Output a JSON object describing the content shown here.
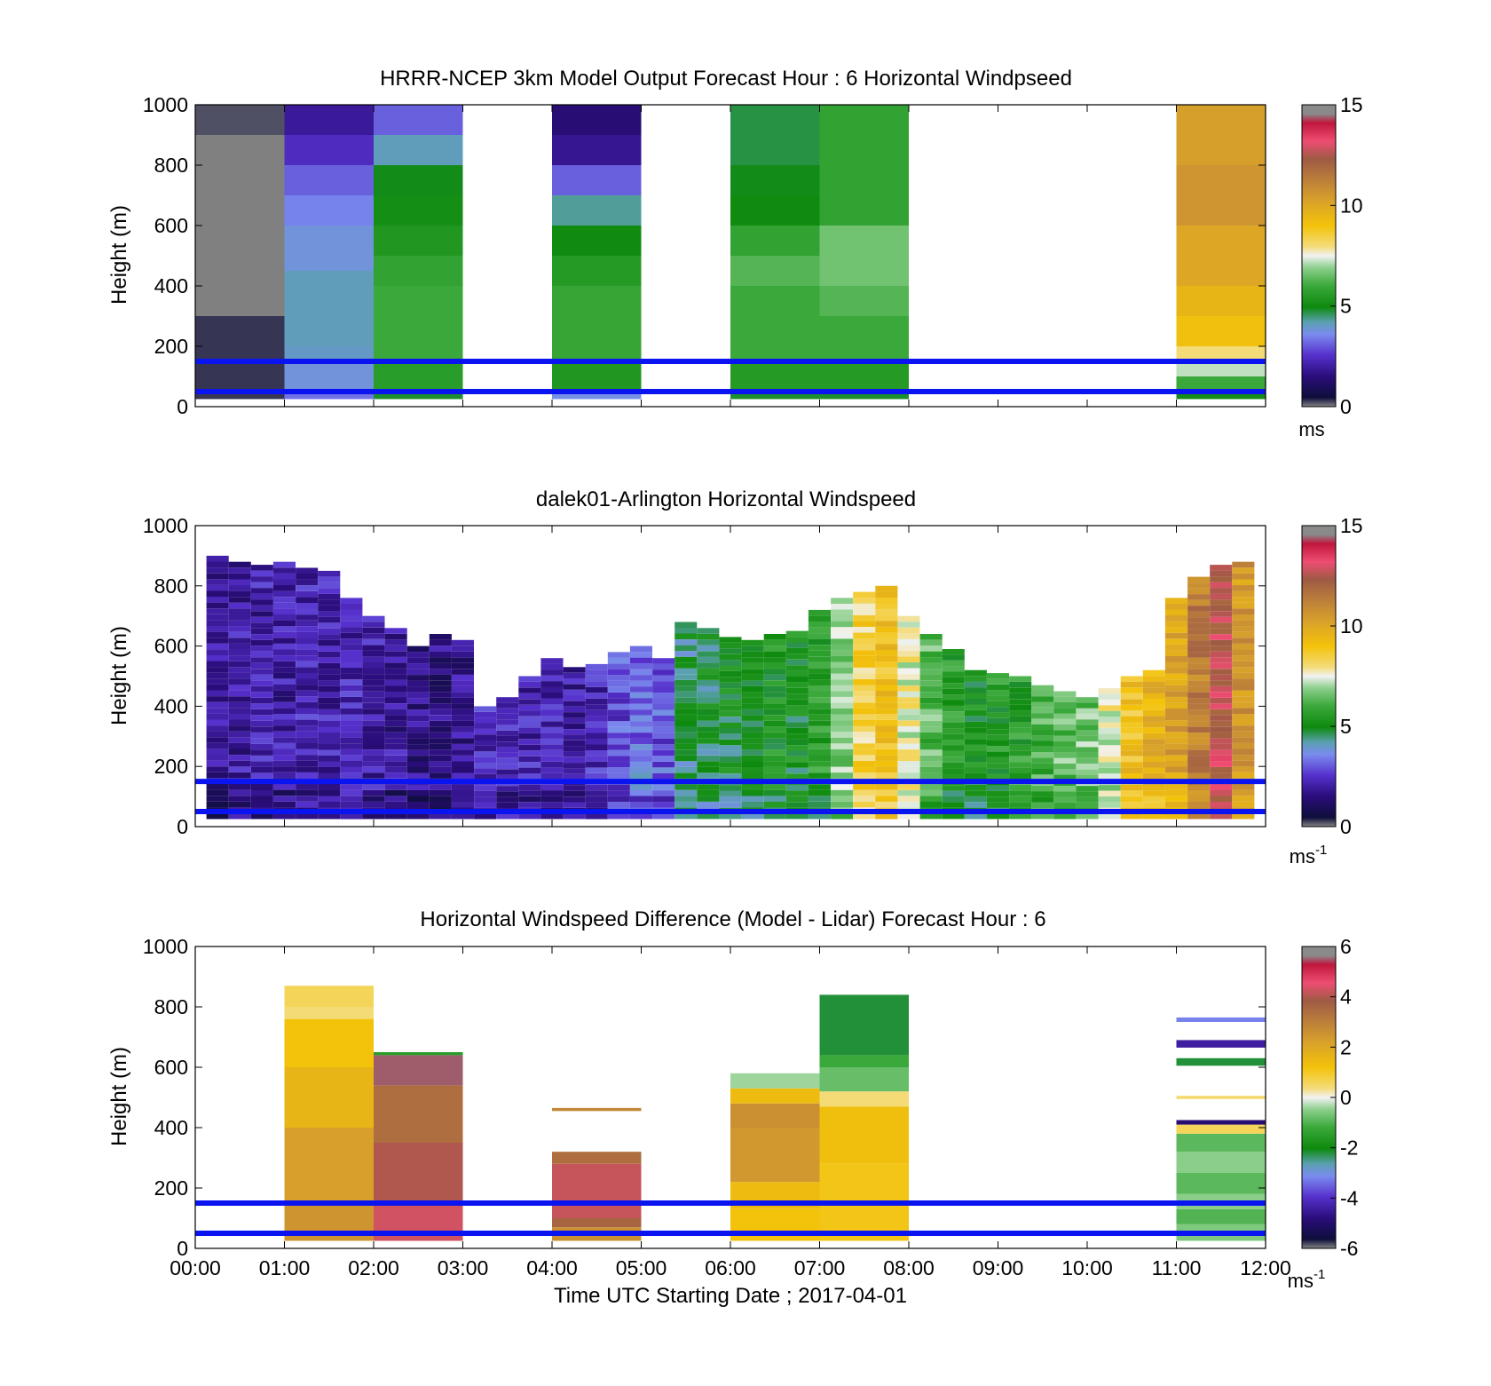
{
  "chart_data": [
    {
      "type": "heatmap",
      "title": "HRRR-NCEP 3km Model Output   Forecast Hour : 6 Horizontal Windpseed",
      "ylabel": "Height (m)",
      "xlabel": "",
      "ylim": [
        0,
        1000
      ],
      "xlim": [
        0,
        12
      ],
      "yticks": [
        "0",
        "200",
        "400",
        "600",
        "800",
        "1000"
      ],
      "xtick_count": 12,
      "colorbar": {
        "ticks": [
          "0",
          "5",
          "10",
          "15"
        ],
        "unit": "ms",
        "unit_sup": "",
        "min": 0,
        "max": 15
      },
      "reference_lines_m": [
        50,
        150
      ],
      "columns": [
        {
          "t0": 0,
          "t1": 1,
          "cells": [
            [
              25,
              300,
              0.3
            ],
            [
              300,
              900,
              -1
            ],
            [
              900,
              1000,
              0.2
            ]
          ]
        },
        {
          "t0": 1,
          "t1": 2,
          "cells": [
            [
              25,
              50,
              3.3
            ],
            [
              50,
              150,
              3.8
            ],
            [
              150,
              200,
              4.0
            ],
            [
              200,
              450,
              4.1
            ],
            [
              450,
              600,
              3.8
            ],
            [
              600,
              700,
              3.5
            ],
            [
              700,
              800,
              3.1
            ],
            [
              800,
              900,
              2.4
            ],
            [
              900,
              1000,
              1.9
            ]
          ]
        },
        {
          "t0": 2,
          "t1": 3,
          "cells": [
            [
              25,
              50,
              4.8
            ],
            [
              50,
              150,
              5.6
            ],
            [
              150,
              400,
              6.0
            ],
            [
              400,
              500,
              5.8
            ],
            [
              500,
              600,
              5.4
            ],
            [
              600,
              700,
              5.1
            ],
            [
              700,
              800,
              4.9
            ],
            [
              800,
              900,
              4.1
            ],
            [
              900,
              1000,
              3.1
            ]
          ]
        },
        {
          "t0": 4,
          "t1": 5,
          "cells": [
            [
              25,
              50,
              3.7
            ],
            [
              50,
              150,
              5.4
            ],
            [
              150,
              400,
              5.9
            ],
            [
              400,
              500,
              5.5
            ],
            [
              500,
              600,
              5.0
            ],
            [
              600,
              700,
              4.3
            ],
            [
              700,
              800,
              3.1
            ],
            [
              800,
              900,
              1.8
            ],
            [
              900,
              1000,
              1.4
            ]
          ]
        },
        {
          "t0": 6,
          "t1": 7,
          "cells": [
            [
              25,
              50,
              4.8
            ],
            [
              50,
              150,
              5.5
            ],
            [
              150,
              400,
              6.0
            ],
            [
              400,
              500,
              6.3
            ],
            [
              500,
              600,
              5.8
            ],
            [
              600,
              700,
              5.0
            ],
            [
              700,
              800,
              4.9
            ],
            [
              800,
              900,
              4.7
            ],
            [
              900,
              1000,
              4.7
            ]
          ]
        },
        {
          "t0": 7,
          "t1": 8,
          "cells": [
            [
              25,
              50,
              4.8
            ],
            [
              50,
              150,
              5.5
            ],
            [
              150,
              300,
              6.0
            ],
            [
              300,
              400,
              6.3
            ],
            [
              400,
              600,
              6.6
            ],
            [
              600,
              1000,
              5.8
            ]
          ]
        },
        {
          "t0": 11,
          "t1": 12,
          "cells": [
            [
              25,
              50,
              4.9
            ],
            [
              50,
              100,
              6.0
            ],
            [
              100,
              150,
              7.2
            ],
            [
              150,
              200,
              8.0
            ],
            [
              200,
              300,
              9.1
            ],
            [
              300,
              400,
              9.5
            ],
            [
              400,
              600,
              10.0
            ],
            [
              600,
              800,
              10.6
            ],
            [
              800,
              1000,
              10.3
            ]
          ]
        }
      ]
    },
    {
      "type": "heatmap",
      "title": "dalek01-Arlington  Horizontal Windspeed",
      "ylabel": "Height (m)",
      "xlabel": "",
      "ylim": [
        0,
        1000
      ],
      "xlim": [
        0,
        12
      ],
      "yticks": [
        "0",
        "200",
        "400",
        "600",
        "800",
        "1000"
      ],
      "xtick_count": 12,
      "colorbar": {
        "ticks": [
          "0",
          "5",
          "10",
          "15"
        ],
        "unit": "ms",
        "unit_sup": "-1",
        "min": 0,
        "max": 15
      },
      "reference_lines_m": [
        50,
        150
      ],
      "profiles": [
        {
          "t": 0.25,
          "top": 900,
          "v": 1.8
        },
        {
          "t": 0.5,
          "top": 880,
          "v": 2.0
        },
        {
          "t": 0.75,
          "top": 870,
          "v": 2.1
        },
        {
          "t": 1.0,
          "top": 880,
          "v": 2.0
        },
        {
          "t": 1.25,
          "top": 860,
          "v": 2.2
        },
        {
          "t": 1.5,
          "top": 850,
          "v": 2.1
        },
        {
          "t": 1.75,
          "top": 760,
          "v": 2.3
        },
        {
          "t": 2.0,
          "top": 700,
          "v": 2.1
        },
        {
          "t": 2.25,
          "top": 660,
          "v": 1.9
        },
        {
          "t": 2.5,
          "top": 600,
          "v": 1.7
        },
        {
          "t": 2.75,
          "top": 640,
          "v": 1.6
        },
        {
          "t": 3.0,
          "top": 620,
          "v": 1.8
        },
        {
          "t": 3.25,
          "top": 400,
          "v": 2.4
        },
        {
          "t": 3.5,
          "top": 430,
          "v": 2.3
        },
        {
          "t": 3.75,
          "top": 500,
          "v": 2.2
        },
        {
          "t": 4.0,
          "top": 560,
          "v": 2.1
        },
        {
          "t": 4.25,
          "top": 530,
          "v": 2.0
        },
        {
          "t": 4.5,
          "top": 540,
          "v": 2.3
        },
        {
          "t": 4.75,
          "top": 580,
          "v": 2.9
        },
        {
          "t": 5.0,
          "top": 600,
          "v": 3.3
        },
        {
          "t": 5.25,
          "top": 560,
          "v": 3.0
        },
        {
          "t": 5.5,
          "top": 680,
          "v": 4.6
        },
        {
          "t": 5.75,
          "top": 660,
          "v": 4.8
        },
        {
          "t": 6.0,
          "top": 630,
          "v": 4.9
        },
        {
          "t": 6.25,
          "top": 620,
          "v": 5.0
        },
        {
          "t": 6.5,
          "top": 640,
          "v": 5.3
        },
        {
          "t": 6.75,
          "top": 650,
          "v": 5.1
        },
        {
          "t": 7.0,
          "top": 720,
          "v": 5.6
        },
        {
          "t": 7.25,
          "top": 760,
          "v": 6.8
        },
        {
          "t": 7.5,
          "top": 780,
          "v": 8.4
        },
        {
          "t": 7.75,
          "top": 800,
          "v": 9.1
        },
        {
          "t": 8.0,
          "top": 700,
          "v": 7.6
        },
        {
          "t": 8.25,
          "top": 640,
          "v": 6.3
        },
        {
          "t": 8.5,
          "top": 590,
          "v": 5.6
        },
        {
          "t": 8.75,
          "top": 520,
          "v": 5.1
        },
        {
          "t": 9.0,
          "top": 510,
          "v": 5.4
        },
        {
          "t": 9.25,
          "top": 500,
          "v": 5.6
        },
        {
          "t": 9.5,
          "top": 470,
          "v": 6.1
        },
        {
          "t": 9.75,
          "top": 450,
          "v": 6.4
        },
        {
          "t": 10.0,
          "top": 430,
          "v": 6.6
        },
        {
          "t": 10.25,
          "top": 460,
          "v": 7.6
        },
        {
          "t": 10.5,
          "top": 500,
          "v": 9.0
        },
        {
          "t": 10.75,
          "top": 520,
          "v": 9.6
        },
        {
          "t": 11.0,
          "top": 760,
          "v": 10.1
        },
        {
          "t": 11.25,
          "top": 830,
          "v": 11.3
        },
        {
          "t": 11.5,
          "top": 870,
          "v": 12.6
        },
        {
          "t": 11.75,
          "top": 880,
          "v": 10.5
        }
      ]
    },
    {
      "type": "heatmap",
      "title": "Horizontal Windspeed Difference (Model - Lidar) Forecast Hour : 6",
      "ylabel": "Height (m)",
      "xlabel": "Time UTC  Starting Date ; 2017-04-01",
      "ylim": [
        0,
        1000
      ],
      "xlim": [
        0,
        12
      ],
      "yticks": [
        "0",
        "200",
        "400",
        "600",
        "800",
        "1000"
      ],
      "xticks": [
        "00:00",
        "01:00",
        "02:00",
        "03:00",
        "04:00",
        "05:00",
        "06:00",
        "07:00",
        "08:00",
        "09:00",
        "10:00",
        "11:00",
        "12:00"
      ],
      "colorbar": {
        "ticks": [
          "-6",
          "-4",
          "-2",
          "0",
          "2",
          "4",
          "6"
        ],
        "unit": "ms",
        "unit_sup": "-1",
        "min": -6,
        "max": 6
      },
      "reference_lines_m": [
        50,
        150
      ],
      "columns": [
        {
          "t0": 1,
          "t1": 2,
          "cells": [
            [
              25,
              150,
              2.5
            ],
            [
              150,
              400,
              2.2
            ],
            [
              400,
              600,
              1.6
            ],
            [
              600,
              760,
              1.2
            ],
            [
              760,
              800,
              0.4
            ],
            [
              800,
              870,
              0.6
            ]
          ]
        },
        {
          "t0": 2,
          "t1": 3,
          "cells": [
            [
              25,
              150,
              4.3
            ],
            [
              150,
              350,
              4.0
            ],
            [
              350,
              540,
              3.4
            ],
            [
              540,
              640,
              5.5
            ],
            [
              640,
              650,
              -1.5
            ]
          ]
        },
        {
          "t0": 4,
          "t1": 5,
          "cells": [
            [
              25,
              70,
              2.6
            ],
            [
              70,
              100,
              3.6
            ],
            [
              100,
              280,
              4.2
            ],
            [
              280,
              320,
              3.4
            ],
            [
              455,
              465,
              2.8
            ]
          ]
        },
        {
          "t0": 6,
          "t1": 7,
          "cells": [
            [
              25,
              130,
              1.2
            ],
            [
              130,
              220,
              1.4
            ],
            [
              220,
              400,
              2.4
            ],
            [
              400,
              480,
              2.6
            ],
            [
              480,
              530,
              1.4
            ],
            [
              530,
              580,
              -0.4
            ]
          ]
        },
        {
          "t0": 7,
          "t1": 8,
          "cells": [
            [
              25,
              280,
              1.1
            ],
            [
              280,
              470,
              1.3
            ],
            [
              470,
              520,
              0.4
            ],
            [
              520,
              600,
              -0.8
            ],
            [
              600,
              640,
              -1.2
            ],
            [
              640,
              840,
              -2.2
            ]
          ]
        },
        {
          "t0": 11,
          "t1": 12,
          "cells": [
            [
              25,
              80,
              -0.6
            ],
            [
              80,
              130,
              -1.0
            ],
            [
              130,
              180,
              -0.5
            ],
            [
              180,
              250,
              -0.9
            ],
            [
              250,
              320,
              -0.5
            ],
            [
              320,
              380,
              -0.9
            ],
            [
              380,
              410,
              0.6
            ],
            [
              410,
              425,
              -4.9
            ],
            [
              495,
              505,
              0.5
            ],
            [
              605,
              630,
              -2.2
            ],
            [
              665,
              690,
              -4.4
            ],
            [
              750,
              765,
              -3.2
            ]
          ]
        }
      ]
    }
  ]
}
